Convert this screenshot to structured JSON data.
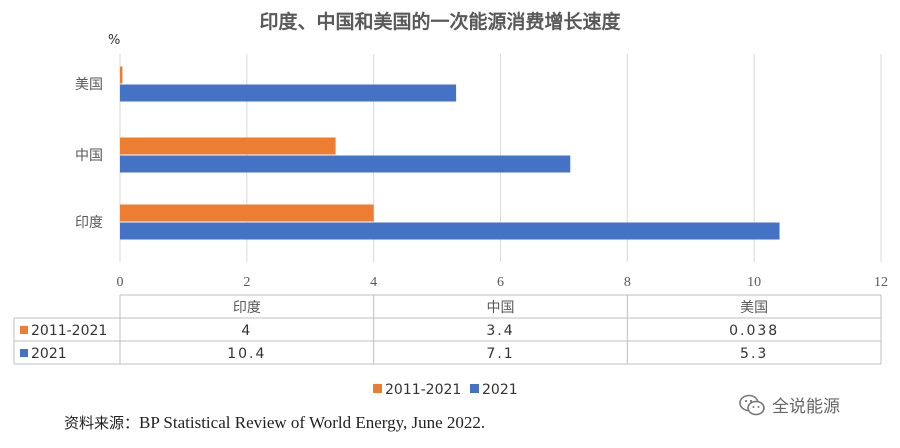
{
  "chart_data": {
    "type": "bar",
    "orientation": "horizontal",
    "title": "印度、中国和美国的一次能源消费增长速度",
    "unit_label": "%",
    "categories": [
      "美国",
      "中国",
      "印度"
    ],
    "series": [
      {
        "name": "2011-2021",
        "values": [
          0.038,
          3.4,
          4
        ],
        "color": "#ED7D31"
      },
      {
        "name": "2021",
        "values": [
          5.3,
          7.1,
          10.4
        ],
        "color": "#4472C4"
      }
    ],
    "xlim": [
      0,
      12
    ],
    "x_ticks": [
      "0",
      "2",
      "4",
      "6",
      "8",
      "10",
      "12"
    ],
    "grid": true,
    "legend_position": "bottom",
    "data_table": {
      "headers": [
        "印度",
        "中国",
        "美国"
      ],
      "rows": [
        {
          "label": "2011-2021",
          "cells": [
            "4",
            "3.4",
            "0.038"
          ]
        },
        {
          "label": "2021",
          "cells": [
            "10.4",
            "7.1",
            "5.3"
          ]
        }
      ]
    }
  },
  "source": {
    "label": "资料来源：",
    "text": "BP Statistical Review of World Energy, June 2022."
  },
  "watermark": {
    "text": "全说能源",
    "icon": "wechat-icon"
  }
}
